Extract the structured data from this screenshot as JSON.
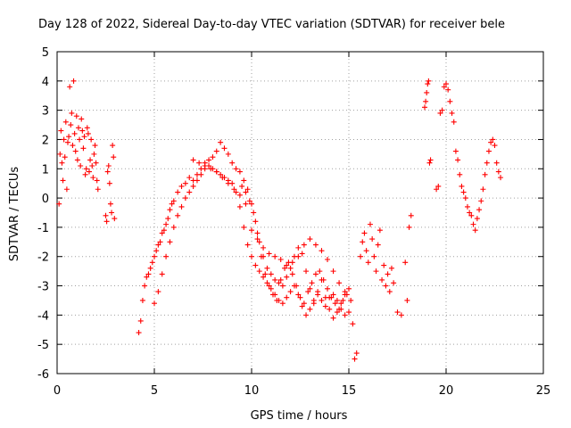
{
  "chart_data": {
    "type": "scatter",
    "title": "Day 128 of 2022, Sidereal Day-to-day VTEC variation (SDTVAR) for receiver bele",
    "xlabel": "GPS time / hours",
    "ylabel": "SDTVAR / TECUs",
    "xlim": [
      0,
      25
    ],
    "ylim": [
      -6,
      5
    ],
    "x_ticks": [
      0,
      5,
      10,
      15,
      20,
      25
    ],
    "y_ticks": [
      -6,
      -5,
      -4,
      -3,
      -2,
      -1,
      0,
      1,
      2,
      3,
      4,
      5
    ],
    "grid": true,
    "marker": "+",
    "series": [
      {
        "name": "SDTVAR",
        "color": "#ff0000",
        "x": [
          0.1,
          0.15,
          0.2,
          0.25,
          0.3,
          0.35,
          0.4,
          0.45,
          0.5,
          0.55,
          0.6,
          0.65,
          0.7,
          0.75,
          0.8,
          0.85,
          0.9,
          0.95,
          1.0,
          1.05,
          1.1,
          1.15,
          1.2,
          1.25,
          1.3,
          1.35,
          1.4,
          1.45,
          1.5,
          1.55,
          1.6,
          1.65,
          1.7,
          1.75,
          1.8,
          1.85,
          1.9,
          1.95,
          2.0,
          2.05,
          2.1,
          2.5,
          2.55,
          2.6,
          2.65,
          2.7,
          2.75,
          2.8,
          2.85,
          2.9,
          2.95,
          4.2,
          4.3,
          4.4,
          4.5,
          4.6,
          4.7,
          4.8,
          4.9,
          5.0,
          5.1,
          5.2,
          5.3,
          5.4,
          5.5,
          5.6,
          5.7,
          5.8,
          5.9,
          6.0,
          6.2,
          6.4,
          6.6,
          6.8,
          7.0,
          7.2,
          7.4,
          7.6,
          7.8,
          8.0,
          8.2,
          8.4,
          8.6,
          8.8,
          9.0,
          9.2,
          9.4,
          9.6,
          9.8,
          10.0,
          10.2,
          10.4,
          10.6,
          10.8,
          11.0,
          11.2,
          11.4,
          11.6,
          11.8,
          12.0,
          12.2,
          12.4,
          12.6,
          12.8,
          13.0,
          13.2,
          13.4,
          13.6,
          13.8,
          14.0,
          14.2,
          14.4,
          14.6,
          14.8,
          15.0,
          15.1,
          15.2,
          15.3,
          15.4,
          5.0,
          5.2,
          5.4,
          5.6,
          5.8,
          6.0,
          6.2,
          6.4,
          6.6,
          6.8,
          7.0,
          7.2,
          7.4,
          7.6,
          7.8,
          8.0,
          8.2,
          8.4,
          8.6,
          8.8,
          9.0,
          9.2,
          9.4,
          9.6,
          9.8,
          10.0,
          10.2,
          10.4,
          10.6,
          10.8,
          11.0,
          11.2,
          11.4,
          11.6,
          11.8,
          12.0,
          12.2,
          12.4,
          12.6,
          12.8,
          13.0,
          13.2,
          13.4,
          13.6,
          13.8,
          14.0,
          14.2,
          14.4,
          14.6,
          14.8,
          15.0,
          7.0,
          7.3,
          7.6,
          7.9,
          8.2,
          8.5,
          8.8,
          9.1,
          9.4,
          9.7,
          10.0,
          10.3,
          10.6,
          10.9,
          11.2,
          11.5,
          11.8,
          12.1,
          12.4,
          12.7,
          13.0,
          13.3,
          13.6,
          13.9,
          14.2,
          14.5,
          14.8,
          9.5,
          9.7,
          9.9,
          10.1,
          10.3,
          10.5,
          10.7,
          10.9,
          11.1,
          11.3,
          11.5,
          11.7,
          11.9,
          12.1,
          12.3,
          12.5,
          12.7,
          12.9,
          13.1,
          13.3,
          13.5,
          13.7,
          13.9,
          14.1,
          14.3,
          14.5,
          14.7,
          14.9,
          15.6,
          15.7,
          15.8,
          15.9,
          16.0,
          16.1,
          16.2,
          16.3,
          16.4,
          16.5,
          16.6,
          16.7,
          16.8,
          16.9,
          17.0,
          17.1,
          17.2,
          17.3,
          17.5,
          17.7,
          17.9,
          18.0,
          18.1,
          18.2,
          18.9,
          18.95,
          19.0,
          19.05,
          19.1,
          19.15,
          19.2,
          19.5,
          19.6,
          19.7,
          19.8,
          19.9,
          20.0,
          20.1,
          20.2,
          20.3,
          20.4,
          20.5,
          20.6,
          20.7,
          20.8,
          20.9,
          21.0,
          21.1,
          21.2,
          21.3,
          21.4,
          21.5,
          21.6,
          21.7,
          21.8,
          21.9,
          22.0,
          22.1,
          22.2,
          22.3,
          22.4,
          22.5,
          22.6,
          22.7,
          22.8
        ],
        "y": [
          -0.2,
          1.5,
          2.3,
          1.2,
          0.6,
          2.0,
          1.4,
          2.6,
          0.3,
          1.9,
          2.1,
          3.8,
          2.5,
          2.9,
          1.8,
          4.0,
          2.2,
          1.6,
          2.8,
          1.3,
          2.4,
          2.0,
          1.1,
          2.7,
          2.3,
          1.7,
          2.1,
          0.8,
          1.0,
          2.4,
          2.2,
          0.9,
          1.3,
          2.0,
          1.1,
          0.7,
          1.5,
          1.8,
          1.2,
          0.6,
          0.3,
          -0.6,
          -0.8,
          0.9,
          1.1,
          0.5,
          -0.2,
          -0.5,
          1.8,
          1.4,
          -0.7,
          -4.6,
          -4.2,
          -3.5,
          -3.0,
          -2.7,
          -2.6,
          -2.4,
          -2.2,
          -2.0,
          -1.8,
          -1.6,
          -1.5,
          -1.2,
          -1.1,
          -0.9,
          -0.7,
          -0.4,
          -0.2,
          -0.1,
          0.2,
          0.4,
          0.5,
          0.7,
          0.6,
          0.8,
          1.0,
          1.2,
          1.3,
          1.4,
          1.6,
          1.9,
          1.7,
          1.5,
          1.2,
          1.0,
          0.9,
          0.6,
          0.3,
          -0.2,
          -0.8,
          -1.5,
          -2.0,
          -2.4,
          -2.6,
          -2.8,
          -2.9,
          -3.0,
          -2.7,
          -2.4,
          -2.0,
          -1.7,
          -1.9,
          -2.5,
          -3.1,
          -3.5,
          -3.2,
          -2.8,
          -3.4,
          -3.8,
          -4.1,
          -3.9,
          -3.6,
          -3.3,
          -3.1,
          -3.5,
          -4.3,
          -5.5,
          -5.3,
          -3.6,
          -3.2,
          -2.6,
          -2.0,
          -1.5,
          -1.0,
          -0.6,
          -0.3,
          0.0,
          0.2,
          0.4,
          0.6,
          0.8,
          1.0,
          1.1,
          1.0,
          0.9,
          0.8,
          0.7,
          0.6,
          0.5,
          0.2,
          -0.3,
          -1.0,
          -1.6,
          -2.0,
          -2.3,
          -2.5,
          -2.7,
          -2.9,
          -3.1,
          -3.3,
          -3.5,
          -3.6,
          -3.4,
          -3.2,
          -3.0,
          -3.3,
          -3.7,
          -4.0,
          -3.8,
          -3.6,
          -3.3,
          -3.5,
          -3.7,
          -3.4,
          -3.3,
          -3.5,
          -3.8,
          -4.0,
          -3.9,
          1.3,
          1.2,
          1.1,
          1.0,
          0.9,
          0.7,
          0.5,
          0.3,
          0.1,
          -0.2,
          -1.1,
          -1.4,
          -1.7,
          -1.9,
          -2.0,
          -2.1,
          -2.3,
          -2.2,
          -2.0,
          -1.6,
          -1.4,
          -1.6,
          -1.8,
          -2.1,
          -2.5,
          -2.9,
          -3.2,
          0.4,
          0.2,
          -0.1,
          -0.5,
          -1.2,
          -2.0,
          -2.6,
          -3.0,
          -3.3,
          -3.5,
          -2.8,
          -2.4,
          -2.2,
          -2.6,
          -3.0,
          -3.4,
          -3.6,
          -3.2,
          -2.9,
          -2.6,
          -2.5,
          -2.8,
          -3.1,
          -3.4,
          -3.6,
          -3.8,
          -3.5,
          -3.3,
          -2.0,
          -1.5,
          -1.2,
          -1.8,
          -2.2,
          -0.9,
          -1.4,
          -2.0,
          -2.5,
          -1.6,
          -1.1,
          -2.8,
          -2.3,
          -3.0,
          -2.6,
          -3.2,
          -2.4,
          -2.9,
          -3.9,
          -4.0,
          -2.2,
          -3.5,
          -1.0,
          -0.6,
          3.1,
          3.3,
          3.6,
          3.9,
          4.0,
          1.2,
          1.3,
          0.3,
          0.4,
          2.9,
          3.0,
          3.8,
          3.9,
          3.7,
          3.3,
          2.9,
          2.6,
          1.6,
          1.3,
          0.8,
          0.4,
          0.2,
          0.0,
          -0.3,
          -0.5,
          -0.6,
          -0.9,
          -1.1,
          -0.7,
          -0.4,
          -0.1,
          0.3,
          0.8,
          1.2,
          1.6,
          1.9,
          2.0,
          1.8,
          1.2,
          0.9,
          0.7
        ]
      }
    ]
  }
}
